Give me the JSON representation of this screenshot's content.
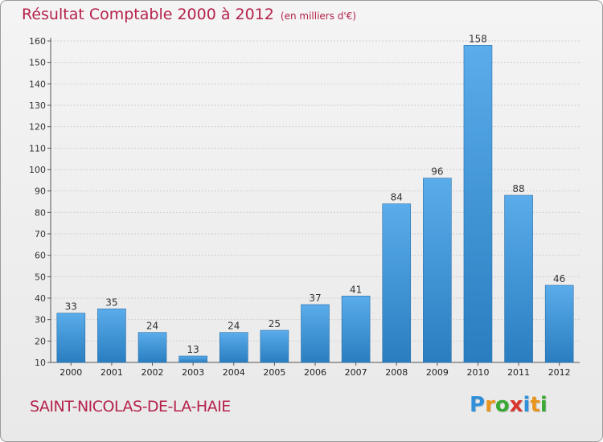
{
  "chart_data": {
    "type": "bar",
    "title": "Résultat Comptable 2000 à 2012",
    "unit": "(en milliers d'€)",
    "categories": [
      "2000",
      "2001",
      "2002",
      "2003",
      "2004",
      "2005",
      "2006",
      "2007",
      "2008",
      "2009",
      "2010",
      "2011",
      "2012"
    ],
    "values": [
      33,
      35,
      24,
      13,
      24,
      25,
      37,
      41,
      84,
      96,
      158,
      88,
      46
    ],
    "ylim": [
      10,
      160
    ],
    "yticks": [
      10,
      20,
      30,
      40,
      50,
      60,
      70,
      80,
      90,
      100,
      110,
      120,
      130,
      140,
      150,
      160
    ],
    "grid": true,
    "xlabel": "",
    "ylabel": "",
    "bar_color_top": "#5aacea",
    "bar_color_bottom": "#2a7ec0",
    "label_color": "#b5224b"
  },
  "footer": {
    "city": "SAINT-NICOLAS-DE-LA-HAIE",
    "logo_letters": [
      {
        "char": "P",
        "color": "#2f8fd8"
      },
      {
        "char": "r",
        "color": "#e8941e"
      },
      {
        "char": "o",
        "color": "#3aa835"
      },
      {
        "char": "x",
        "color": "#d8342b"
      },
      {
        "char": "i",
        "color": "#2f8fd8"
      },
      {
        "char": "t",
        "color": "#e8941e"
      },
      {
        "char": "i",
        "color": "#3aa835"
      }
    ]
  }
}
